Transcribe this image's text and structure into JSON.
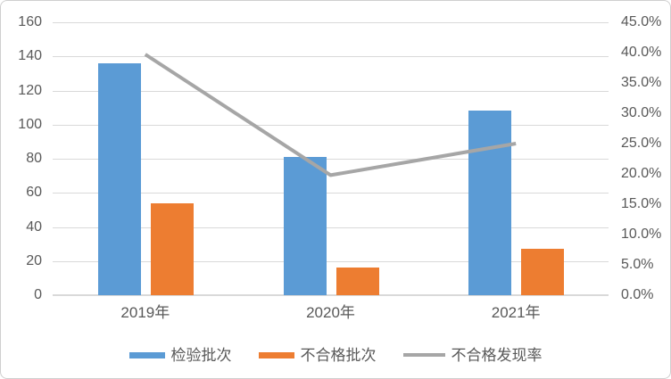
{
  "chart_data": {
    "type": "bar",
    "subtype": "bar-line-combo",
    "title": "",
    "categories": [
      "2019年",
      "2020年",
      "2021年"
    ],
    "series": [
      {
        "key": "inspection-batches",
        "name": "检验批次",
        "type": "bar",
        "axis": "left",
        "color": "#5B9BD5",
        "values": [
          136,
          81,
          108
        ]
      },
      {
        "key": "unqualified-batches",
        "name": "不合格批次",
        "type": "bar",
        "axis": "left",
        "color": "#ED7D31",
        "values": [
          54,
          16,
          27
        ]
      },
      {
        "key": "unqualified-rate",
        "name": "不合格发现率",
        "type": "line",
        "axis": "right",
        "color": "#A6A6A6",
        "values": [
          39.7,
          19.8,
          25.0
        ]
      }
    ],
    "left_axis": {
      "min": 0,
      "max": 160,
      "step": 20,
      "tick_labels": [
        "160",
        "140",
        "120",
        "100",
        "80",
        "60",
        "40",
        "20",
        "0"
      ]
    },
    "right_axis": {
      "min": 0,
      "max": 45,
      "step": 5,
      "tick_labels": [
        "45.0%",
        "40.0%",
        "35.0%",
        "30.0%",
        "25.0%",
        "20.0%",
        "15.0%",
        "10.0%",
        "5.0%",
        "0.0%"
      ]
    },
    "grid": true,
    "legend_position": "bottom",
    "colors": {
      "gridline": "#d9d9d9",
      "axis_text": "#595959",
      "bar_blue": "#5B9BD5",
      "bar_orange": "#ED7D31",
      "line_gray": "#A6A6A6"
    }
  }
}
